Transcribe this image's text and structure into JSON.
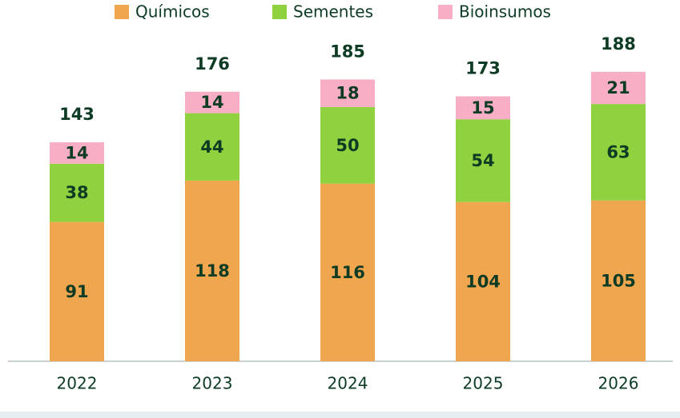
{
  "chart_data": {
    "type": "stacked_bar",
    "categories": [
      "2022",
      "2023",
      "2024",
      "2025",
      "2026"
    ],
    "series": [
      {
        "name": "Químicos",
        "color": "#f0a54f",
        "values": [
          91,
          118,
          116,
          104,
          105
        ]
      },
      {
        "name": "Sementes",
        "color": "#8fd13f",
        "values": [
          38,
          44,
          50,
          54,
          63
        ]
      },
      {
        "name": "Bioinsumos",
        "color": "#f8afc5",
        "values": [
          14,
          14,
          18,
          15,
          21
        ]
      }
    ],
    "totals": [
      143,
      176,
      185,
      173,
      188
    ],
    "legend": "top"
  }
}
